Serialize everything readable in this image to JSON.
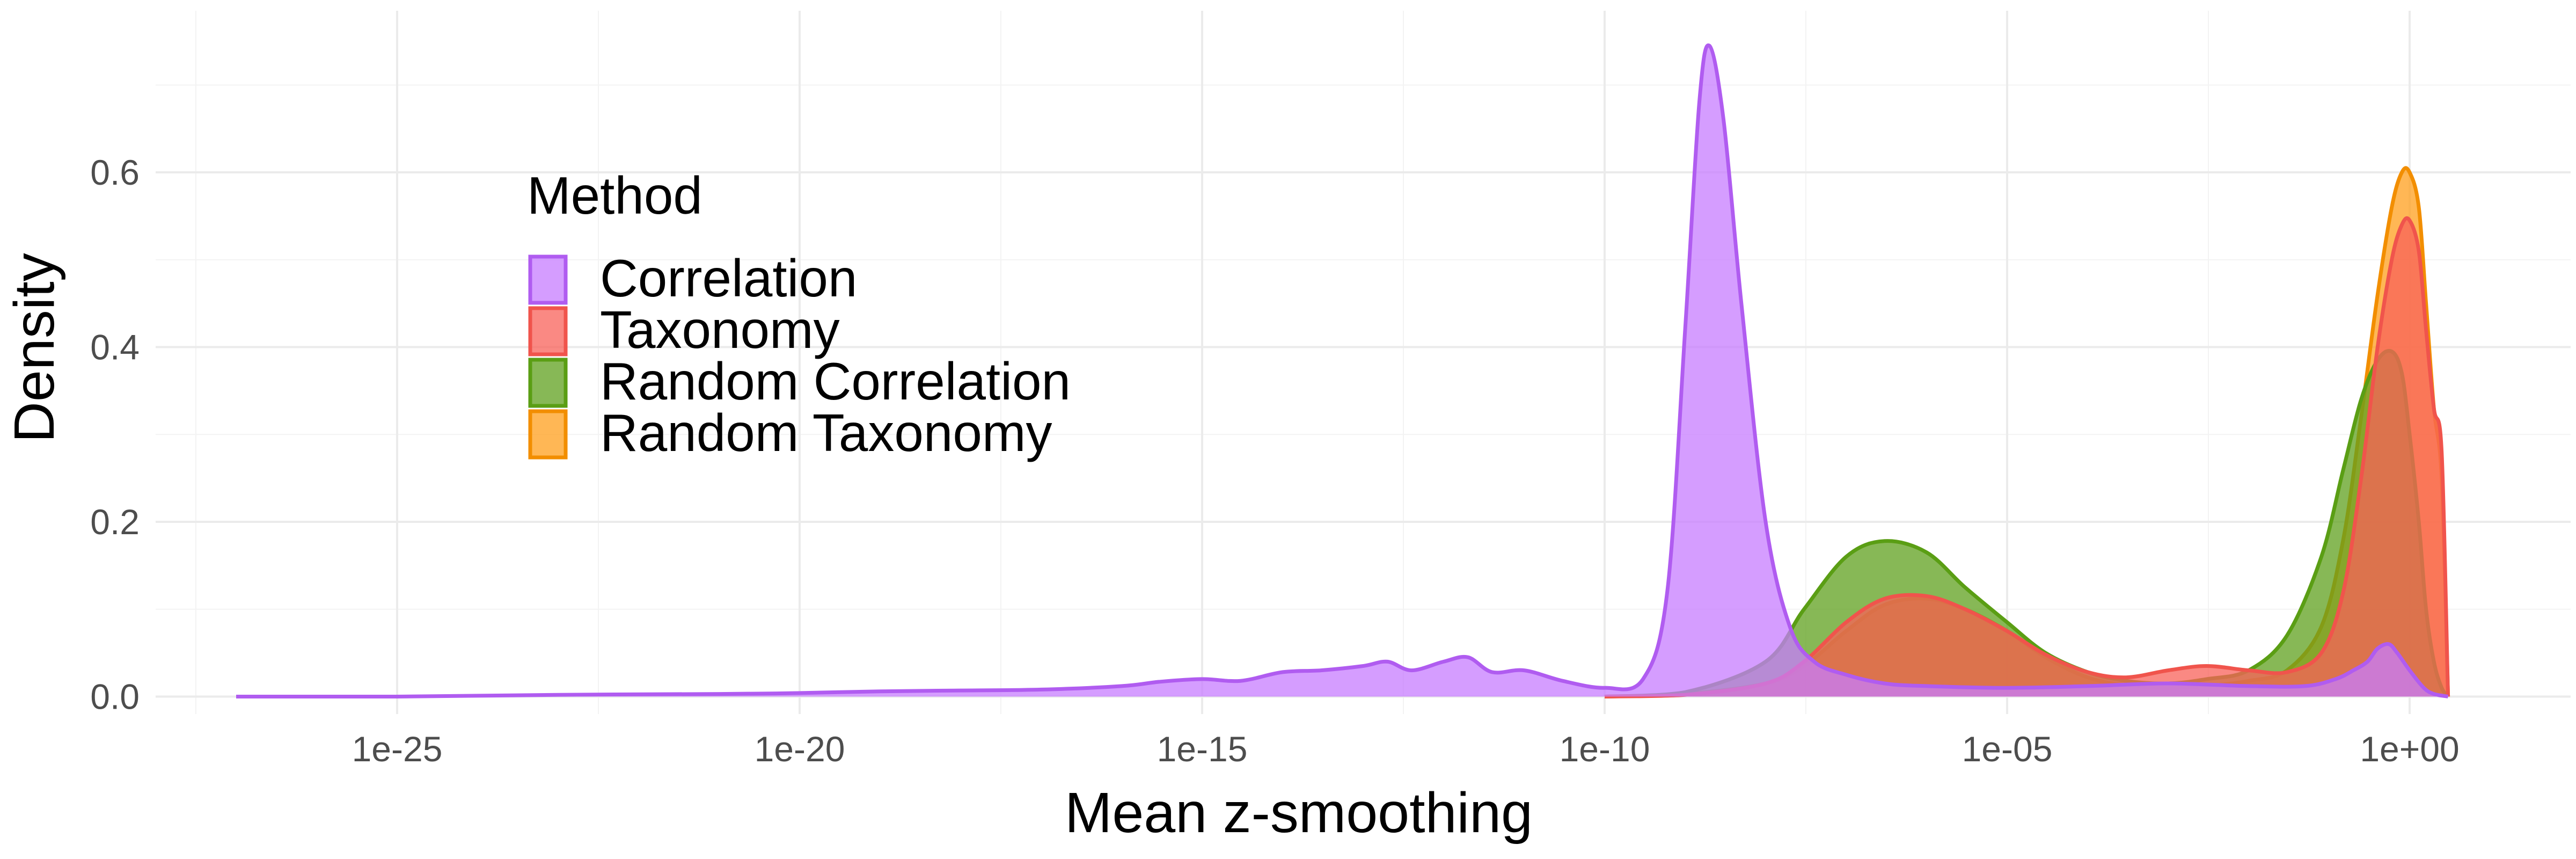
{
  "chart_data": {
    "type": "area",
    "title": "",
    "xlabel": "Mean z-smoothing",
    "ylabel": "Density",
    "x_scale": "log10",
    "xlim": [
      1e-28,
      100.0
    ],
    "ylim": [
      0,
      0.75
    ],
    "x_ticks": [
      1e-25,
      1e-20,
      1e-15,
      1e-10,
      1e-05,
      1
    ],
    "x_tick_labels": [
      "1e-25",
      "1e-20",
      "1e-15",
      "1e-10",
      "1e-05",
      "1e+00"
    ],
    "y_ticks": [
      0,
      0.2,
      0.4,
      0.6
    ],
    "y_tick_labels": [
      "0.0",
      "0.2",
      "0.4",
      "0.6"
    ],
    "grid": true,
    "legend": {
      "title": "Method",
      "placement": "top-left inside plot",
      "entries": [
        "Correlation",
        "Taxonomy",
        "Random Correlation",
        "Random Taxonomy"
      ]
    },
    "series": [
      {
        "name": "Random Taxonomy",
        "fill": "#ff9f1c",
        "stroke": "#f28e00",
        "x": [
          1e-10,
          1e-09,
          1e-08,
          3e-08,
          1e-07,
          3e-07,
          1e-06,
          3e-06,
          1e-05,
          3e-05,
          0.0001,
          0.0003,
          0.001,
          0.003,
          0.01,
          0.03,
          0.08,
          0.15,
          0.25,
          0.4,
          0.6,
          0.8,
          1,
          1.3,
          1.6,
          2,
          2.5,
          3
        ],
        "y": [
          0,
          0.003,
          0.015,
          0.035,
          0.075,
          0.105,
          0.112,
          0.1,
          0.075,
          0.045,
          0.022,
          0.013,
          0.01,
          0.012,
          0.018,
          0.03,
          0.08,
          0.18,
          0.32,
          0.46,
          0.56,
          0.6,
          0.6,
          0.56,
          0.45,
          0.33,
          0.25,
          0.0
        ]
      },
      {
        "name": "Random Correlation",
        "fill": "#5fa01e",
        "stroke": "#5a9e14",
        "x": [
          1e-10,
          1e-09,
          1e-08,
          3e-08,
          1e-07,
          3e-07,
          1e-06,
          3e-06,
          1e-05,
          3e-05,
          0.0001,
          0.0003,
          0.001,
          0.003,
          0.01,
          0.03,
          0.08,
          0.15,
          0.25,
          0.4,
          0.6,
          0.8,
          1,
          1.3,
          1.6,
          2,
          2.5,
          3
        ],
        "y": [
          0,
          0.005,
          0.04,
          0.1,
          0.16,
          0.178,
          0.165,
          0.125,
          0.085,
          0.05,
          0.028,
          0.018,
          0.015,
          0.02,
          0.03,
          0.07,
          0.16,
          0.26,
          0.34,
          0.385,
          0.395,
          0.37,
          0.3,
          0.2,
          0.1,
          0.04,
          0.01,
          0.0
        ]
      },
      {
        "name": "Taxonomy",
        "fill": "#f8625a",
        "stroke": "#f0544c",
        "x": [
          1e-10,
          1e-09,
          1e-08,
          3e-08,
          1e-07,
          3e-07,
          1e-06,
          3e-06,
          1e-05,
          3e-05,
          0.0001,
          0.0003,
          0.001,
          0.003,
          0.01,
          0.03,
          0.08,
          0.15,
          0.25,
          0.4,
          0.6,
          0.8,
          1,
          1.3,
          1.6,
          2,
          2.5,
          3
        ],
        "y": [
          0,
          0.002,
          0.015,
          0.04,
          0.085,
          0.112,
          0.115,
          0.1,
          0.075,
          0.048,
          0.028,
          0.022,
          0.03,
          0.035,
          0.03,
          0.028,
          0.05,
          0.12,
          0.25,
          0.4,
          0.5,
          0.54,
          0.545,
          0.51,
          0.42,
          0.33,
          0.28,
          0.0
        ]
      },
      {
        "name": "Correlation",
        "fill": "#c77cff",
        "stroke": "#b05cf0",
        "x": [
          1e-27,
          1e-25,
          1e-23,
          1e-21,
          1e-20,
          1e-19,
          1e-18,
          1e-17,
          1e-16,
          3e-16,
          1e-15,
          3e-15,
          1e-14,
          3e-14,
          1e-13,
          2e-13,
          4e-13,
          1e-12,
          2e-12,
          4e-12,
          1e-11,
          3e-11,
          1e-10,
          3e-10,
          6e-10,
          1e-09,
          1.5e-09,
          2e-09,
          3e-09,
          5e-09,
          1e-08,
          2e-08,
          4e-08,
          1e-07,
          3e-07,
          1e-06,
          1e-05,
          0.0001,
          0.001,
          0.01,
          0.05,
          0.12,
          0.2,
          0.3,
          0.4,
          0.55,
          0.7,
          1,
          1.5,
          2,
          3
        ],
        "y": [
          0,
          0.0,
          0.002,
          0.003,
          0.004,
          0.006,
          0.007,
          0.008,
          0.012,
          0.017,
          0.02,
          0.018,
          0.028,
          0.03,
          0.035,
          0.04,
          0.03,
          0.04,
          0.045,
          0.028,
          0.03,
          0.018,
          0.01,
          0.02,
          0.12,
          0.42,
          0.68,
          0.745,
          0.66,
          0.45,
          0.2,
          0.08,
          0.04,
          0.025,
          0.015,
          0.012,
          0.01,
          0.012,
          0.015,
          0.012,
          0.012,
          0.02,
          0.03,
          0.04,
          0.055,
          0.06,
          0.05,
          0.03,
          0.01,
          0.003,
          0.0
        ]
      }
    ]
  }
}
